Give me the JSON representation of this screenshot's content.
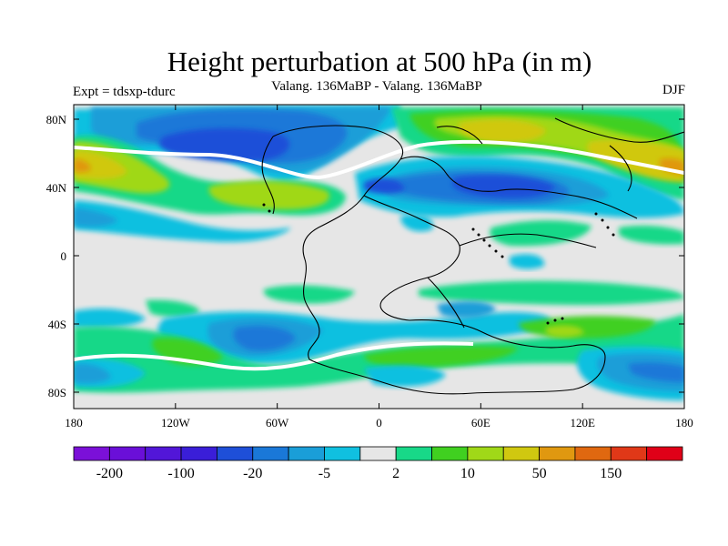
{
  "title": "Height perturbation at 500 hPa (in m)",
  "subtitle": "Valang. 136MaBP - Valang.  136MaBP",
  "left_label": "Expt = tdsxp-tdurc",
  "right_label": "DJF",
  "lat_ticks": [
    "80N",
    "40N",
    "0",
    "40S",
    "80S"
  ],
  "lon_ticks": [
    "180",
    "120W",
    "60W",
    "0",
    "60E",
    "120E",
    "180"
  ],
  "colorbar": {
    "colors": [
      "#7b10d8",
      "#6a0fd8",
      "#5216d8",
      "#3a1ed8",
      "#1e4fd8",
      "#1a78d8",
      "#1a9ed8",
      "#10c0e0",
      "#e6e6e6",
      "#18d888",
      "#40d020",
      "#a0d818",
      "#d0c810",
      "#e09810",
      "#e06810",
      "#e03818",
      "#e00018"
    ],
    "labels": [
      {
        "text": "-200",
        "index": 1
      },
      {
        "text": "-100",
        "index": 3
      },
      {
        "text": "-20",
        "index": 5
      },
      {
        "text": "-5",
        "index": 7
      },
      {
        "text": "2",
        "index": 9
      },
      {
        "text": "10",
        "index": 11
      },
      {
        "text": "50",
        "index": 13
      },
      {
        "text": "150",
        "index": 15
      }
    ]
  },
  "palette": {
    "neutral": "#e6e6e6",
    "cyan": "#10c0e0",
    "lightblue": "#1a9ed8",
    "blue": "#1a78d8",
    "darkblue": "#1e4fd8",
    "teal": "#18d888",
    "green": "#40d020",
    "yellowgreen": "#a0d818",
    "gold": "#d0c810",
    "orange": "#e09810"
  }
}
